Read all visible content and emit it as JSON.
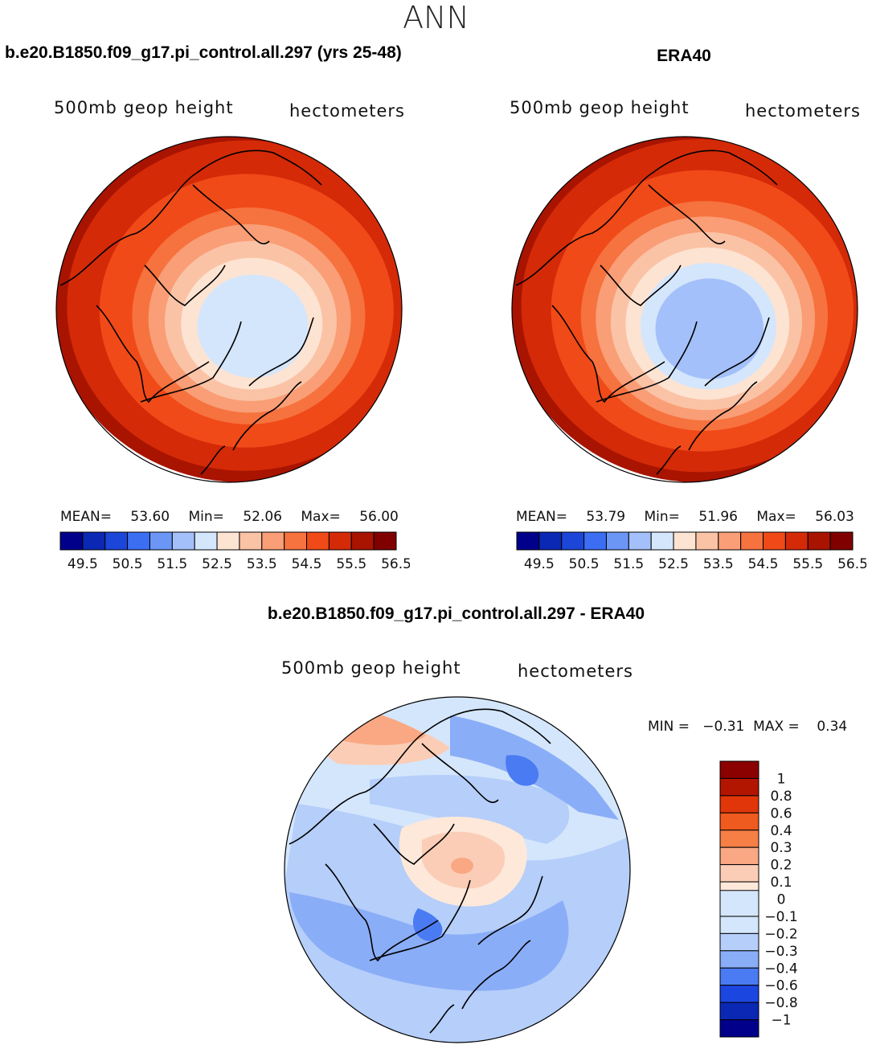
{
  "figure": {
    "title": "ANN"
  },
  "panel_left": {
    "title": "b.e20.B1850.f09_g17.pi_control.all.297 (yrs 25-48)",
    "variable": "500mb  geop  height",
    "units": "hectometers",
    "mean_label": "MEAN=",
    "mean": "53.60",
    "min_label": "Min=",
    "min": "52.06",
    "max_label": "Max=",
    "max": "56.00"
  },
  "panel_right": {
    "title": "ERA40",
    "variable": "500mb  geop  height",
    "units": "hectometers",
    "mean_label": "MEAN=",
    "mean": "53.79",
    "min_label": "Min=",
    "min": "51.96",
    "max_label": "Max=",
    "max": "56.03"
  },
  "panel_diff": {
    "title": "b.e20.B1850.f09_g17.pi_control.all.297 - ERA40",
    "variable": "500mb  geop  height",
    "units": "hectometers",
    "range_text": "MIN =   −0.31  MAX =    0.34"
  },
  "chart_data": [
    {
      "type": "heatmap",
      "projection": "north-polar-stereographic",
      "title": "b.e20.B1850.f09_g17.pi_control.all.297 (yrs 25-48)",
      "colorbar_ticks": [
        "49.5",
        "50.5",
        "51.5",
        "52.5",
        "53.5",
        "54.5",
        "55.5",
        "56.5"
      ],
      "levels": [
        49.5,
        50,
        50.5,
        51,
        51.5,
        52,
        52.5,
        53,
        53.5,
        54,
        54.5,
        55,
        55.5,
        56,
        56.5
      ],
      "contour_ring_levels": [
        56.0,
        55.75,
        55.5,
        55.25,
        55.0,
        54.5,
        54.0,
        53.5,
        53.0,
        52.5
      ],
      "mean": 53.6,
      "min": 52.06,
      "max": 56.0
    },
    {
      "type": "heatmap",
      "projection": "north-polar-stereographic",
      "title": "ERA40",
      "colorbar_ticks": [
        "49.5",
        "50.5",
        "51.5",
        "52.5",
        "53.5",
        "54.5",
        "55.5",
        "56.5"
      ],
      "levels": [
        49.5,
        50,
        50.5,
        51,
        51.5,
        52,
        52.5,
        53,
        53.5,
        54,
        54.5,
        55,
        55.5,
        56,
        56.5
      ],
      "contour_ring_levels": [
        56.03,
        55.75,
        55.5,
        55.25,
        55.0,
        54.5,
        54.0,
        53.5,
        53.0,
        52.5,
        52.0
      ],
      "mean": 53.79,
      "min": 51.96,
      "max": 56.03
    },
    {
      "type": "heatmap",
      "projection": "north-polar-stereographic",
      "title": "b.e20.B1850.f09_g17.pi_control.all.297 - ERA40",
      "colorbar_ticks": [
        "1",
        "0.8",
        "0.6",
        "0.4",
        "0.3",
        "0.2",
        "0.1",
        "0",
        "−0.1",
        "−0.2",
        "−0.3",
        "−0.4",
        "−0.6",
        "−0.8",
        "−1"
      ],
      "min": -0.31,
      "max": 0.34
    }
  ],
  "colors": {
    "full_scale": [
      "#00008b",
      "#0a28b4",
      "#1c46d8",
      "#3b6ef2",
      "#6c96f6",
      "#a4c0fa",
      "#d4e6fc",
      "#fde3d2",
      "#fbc3a6",
      "#f99e76",
      "#f6723f",
      "#f04a18",
      "#d42a08",
      "#a81400",
      "#800000"
    ],
    "diff_scale_top_to_bottom": [
      "#8b0000",
      "#b21500",
      "#e0360a",
      "#ef5a1e",
      "#f57f45",
      "#f9a883",
      "#fbcdb6",
      "#fde8da",
      "#d4e6fc",
      "#b5cefa",
      "#8aadf7",
      "#4a7bf2",
      "#1c46e0",
      "#0a28b4",
      "#00008b"
    ]
  }
}
